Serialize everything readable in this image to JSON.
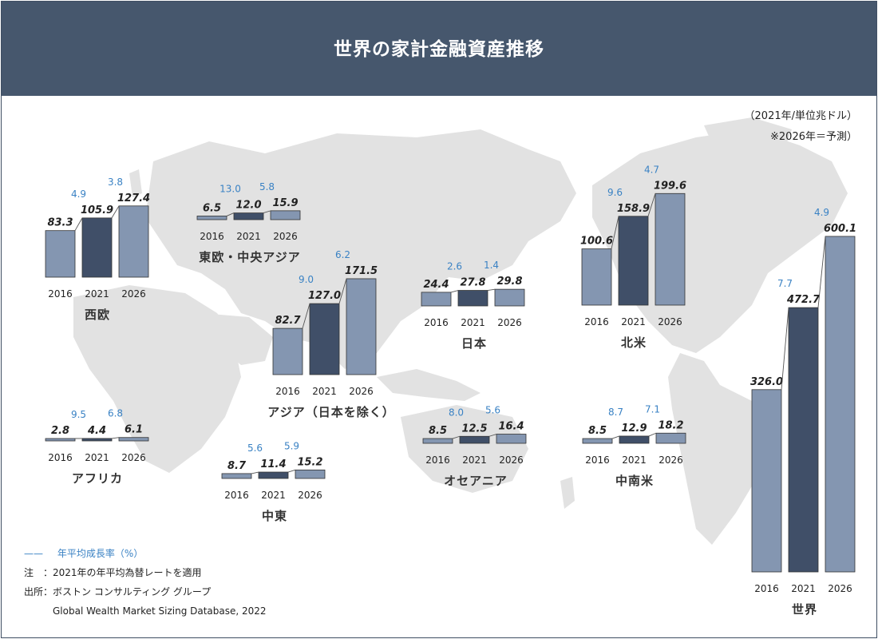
{
  "title": "世界の家計金融資産推移",
  "unit_note": "（2021年/単位兆ドル）",
  "forecast_note": "※2026年＝予測）",
  "legend": {
    "line": "——",
    "label": "年平均成長率（%）"
  },
  "notes": [
    "注　：2021年の年平均為替レートを適用",
    "出所：ボストン コンサルティング グループ",
    "　　　Global Wealth Market Sizing Database, 2022"
  ],
  "colors": {
    "header": "#46576d",
    "bar_light": "#8496b1",
    "bar_dark": "#404f68",
    "growth": "#3a82c4",
    "map": "#e0e0e0"
  },
  "chart_data": [
    {
      "type": "bar",
      "region": "西欧",
      "categories": [
        "2016",
        "2021",
        "2026"
      ],
      "values": [
        83.3,
        105.9,
        127.4
      ],
      "growth_rates": [
        4.9,
        3.8
      ]
    },
    {
      "type": "bar",
      "region": "東欧・中央アジア",
      "categories": [
        "2016",
        "2021",
        "2026"
      ],
      "values": [
        6.5,
        12.0,
        15.9
      ],
      "growth_rates": [
        13.0,
        5.8
      ]
    },
    {
      "type": "bar",
      "region": "アジア（日本を除く）",
      "categories": [
        "2016",
        "2021",
        "2026"
      ],
      "values": [
        82.7,
        127.0,
        171.5
      ],
      "growth_rates": [
        9.0,
        6.2
      ]
    },
    {
      "type": "bar",
      "region": "日本",
      "categories": [
        "2016",
        "2021",
        "2026"
      ],
      "values": [
        24.4,
        27.8,
        29.8
      ],
      "growth_rates": [
        2.6,
        1.4
      ]
    },
    {
      "type": "bar",
      "region": "北米",
      "categories": [
        "2016",
        "2021",
        "2026"
      ],
      "values": [
        100.6,
        158.9,
        199.6
      ],
      "growth_rates": [
        9.6,
        4.7
      ]
    },
    {
      "type": "bar",
      "region": "アフリカ",
      "categories": [
        "2016",
        "2021",
        "2026"
      ],
      "values": [
        2.8,
        4.4,
        6.1
      ],
      "growth_rates": [
        9.5,
        6.8
      ]
    },
    {
      "type": "bar",
      "region": "中東",
      "categories": [
        "2016",
        "2021",
        "2026"
      ],
      "values": [
        8.7,
        11.4,
        15.2
      ],
      "growth_rates": [
        5.6,
        5.9
      ]
    },
    {
      "type": "bar",
      "region": "オセアニア",
      "categories": [
        "2016",
        "2021",
        "2026"
      ],
      "values": [
        8.5,
        12.5,
        16.4
      ],
      "growth_rates": [
        8.0,
        5.6
      ]
    },
    {
      "type": "bar",
      "region": "中南米",
      "categories": [
        "2016",
        "2021",
        "2026"
      ],
      "values": [
        8.5,
        12.9,
        18.2
      ],
      "growth_rates": [
        8.7,
        7.1
      ]
    },
    {
      "type": "bar",
      "region": "世界",
      "categories": [
        "2016",
        "2021",
        "2026"
      ],
      "values": [
        326.0,
        472.7,
        600.1
      ],
      "growth_rates": [
        7.7,
        4.9
      ]
    }
  ]
}
